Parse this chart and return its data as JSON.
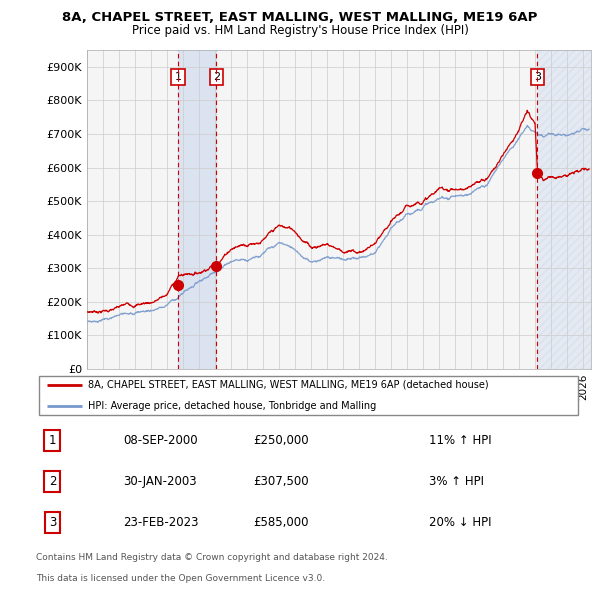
{
  "title1": "8A, CHAPEL STREET, EAST MALLING, WEST MALLING, ME19 6AP",
  "title2": "Price paid vs. HM Land Registry's House Price Index (HPI)",
  "ylabel_ticks": [
    "£0",
    "£100K",
    "£200K",
    "£300K",
    "£400K",
    "£500K",
    "£600K",
    "£700K",
    "£800K",
    "£900K"
  ],
  "ytick_vals": [
    0,
    100000,
    200000,
    300000,
    400000,
    500000,
    600000,
    700000,
    800000,
    900000
  ],
  "ylim": [
    0,
    950000
  ],
  "xlim_start": 1995.0,
  "xlim_end": 2026.5,
  "transactions": [
    {
      "label": "1",
      "date": 2000.69,
      "price": 250000,
      "text": "08-SEP-2000",
      "amount": "£250,000",
      "pct": "11% ↑ HPI"
    },
    {
      "label": "2",
      "date": 2003.08,
      "price": 307500,
      "text": "30-JAN-2003",
      "amount": "£307,500",
      "pct": "3% ↑ HPI"
    },
    {
      "label": "3",
      "date": 2023.15,
      "price": 585000,
      "text": "23-FEB-2023",
      "amount": "£585,000",
      "pct": "20% ↓ HPI"
    }
  ],
  "legend_line1": "8A, CHAPEL STREET, EAST MALLING, WEST MALLING, ME19 6AP (detached house)",
  "legend_line2": "HPI: Average price, detached house, Tonbridge and Malling",
  "footer1": "Contains HM Land Registry data © Crown copyright and database right 2024.",
  "footer2": "This data is licensed under the Open Government Licence v3.0.",
  "red_color": "#cc0000",
  "blue_color": "#7799cc",
  "shade_color": "#ccd8ee",
  "grid_color": "#cccccc",
  "chart_bg": "#f5f5f5",
  "hpi_segments": [
    [
      1995,
      130000
    ],
    [
      1996,
      138000
    ],
    [
      1997,
      145000
    ],
    [
      1998,
      155000
    ],
    [
      1999,
      165000
    ],
    [
      2000,
      185000
    ],
    [
      2001,
      220000
    ],
    [
      2002,
      260000
    ],
    [
      2003,
      290000
    ],
    [
      2004,
      330000
    ],
    [
      2005,
      340000
    ],
    [
      2006,
      360000
    ],
    [
      2007,
      390000
    ],
    [
      2008,
      370000
    ],
    [
      2009,
      340000
    ],
    [
      2010,
      360000
    ],
    [
      2011,
      350000
    ],
    [
      2012,
      345000
    ],
    [
      2013,
      365000
    ],
    [
      2014,
      415000
    ],
    [
      2015,
      450000
    ],
    [
      2016,
      480000
    ],
    [
      2017,
      500000
    ],
    [
      2018,
      510000
    ],
    [
      2019,
      510000
    ],
    [
      2020,
      530000
    ],
    [
      2021,
      600000
    ],
    [
      2022,
      680000
    ],
    [
      2022.5,
      710000
    ],
    [
      2023.0,
      695000
    ],
    [
      2023.15,
      680000
    ],
    [
      2023.5,
      670000
    ],
    [
      2024,
      680000
    ],
    [
      2025,
      700000
    ],
    [
      2026,
      710000
    ]
  ],
  "prop_segments": [
    [
      1995,
      133000
    ],
    [
      1996,
      142000
    ],
    [
      1997,
      150000
    ],
    [
      1998,
      160000
    ],
    [
      1999,
      172000
    ],
    [
      2000,
      195000
    ],
    [
      2000.69,
      250000
    ],
    [
      2001,
      255000
    ],
    [
      2002,
      268000
    ],
    [
      2003.08,
      307500
    ],
    [
      2003.5,
      330000
    ],
    [
      2004,
      360000
    ],
    [
      2005,
      380000
    ],
    [
      2006,
      400000
    ],
    [
      2007,
      430000
    ],
    [
      2008,
      415000
    ],
    [
      2009,
      375000
    ],
    [
      2010,
      390000
    ],
    [
      2011,
      375000
    ],
    [
      2012,
      370000
    ],
    [
      2013,
      395000
    ],
    [
      2014,
      440000
    ],
    [
      2015,
      480000
    ],
    [
      2016,
      510000
    ],
    [
      2017,
      540000
    ],
    [
      2018,
      545000
    ],
    [
      2019,
      545000
    ],
    [
      2020,
      570000
    ],
    [
      2021,
      640000
    ],
    [
      2022,
      730000
    ],
    [
      2022.5,
      775000
    ],
    [
      2023.0,
      740000
    ],
    [
      2023.15,
      585000
    ],
    [
      2023.5,
      560000
    ],
    [
      2024,
      570000
    ],
    [
      2025,
      590000
    ],
    [
      2026,
      600000
    ]
  ]
}
